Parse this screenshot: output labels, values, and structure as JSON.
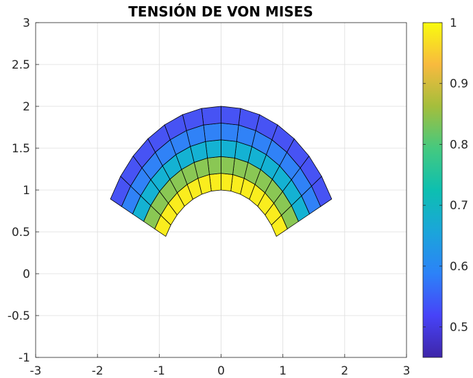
{
  "chart_data": {
    "type": "heatmap",
    "title": "TENSIÓN DE VON MISES",
    "xlabel": "",
    "ylabel": "",
    "xlim": [
      -3,
      3
    ],
    "ylim": [
      -1,
      3
    ],
    "xticks": [
      "-3",
      "-2",
      "-1",
      "0",
      "1",
      "2",
      "3"
    ],
    "yticks": [
      "-1",
      "-0.5",
      "0",
      "0.5",
      "1",
      "1.5",
      "2",
      "2.5",
      "3"
    ],
    "grid": true,
    "mesh": {
      "shape": "annular-sector",
      "inner_radius": 1,
      "outer_radius": 2,
      "angle_start_deg": 26.5,
      "angle_end_deg": 153.5,
      "radial_divisions": 5,
      "angular_divisions": 14
    },
    "ring_values": [
      0.98,
      0.82,
      0.69,
      0.6,
      0.53
    ],
    "colorbar": {
      "position": "right",
      "range": [
        0.45,
        1
      ],
      "ticks": [
        "0.5",
        "0.6",
        "0.7",
        "0.8",
        "0.9",
        "1"
      ],
      "colormap": "parula"
    }
  }
}
